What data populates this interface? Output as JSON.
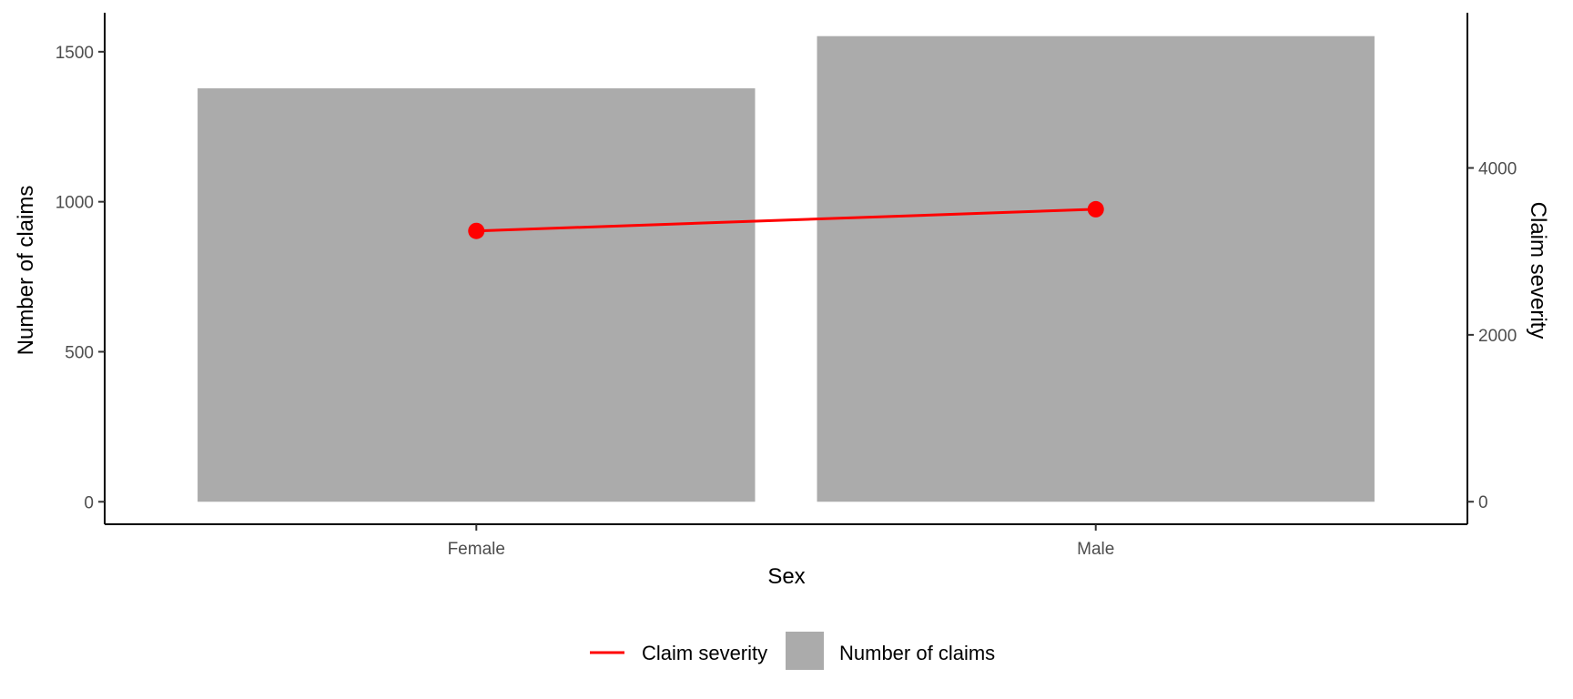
{
  "chart_data": {
    "type": "bar",
    "categories": [
      "Female",
      "Male"
    ],
    "xlabel": "Sex",
    "ylabel_left": "Number of claims",
    "ylabel_right": "Claim severity",
    "ylim_left": [
      -75,
      1630
    ],
    "ylim_right": [
      -270,
      5860
    ],
    "yticks_left": [
      0,
      500,
      1000,
      1500
    ],
    "yticks_right": [
      0,
      2000,
      4000
    ],
    "series": [
      {
        "name": "Number of claims",
        "type": "bar",
        "axis": "left",
        "color": "#ABABAB",
        "values": [
          1378,
          1552
        ]
      },
      {
        "name": "Claim severity",
        "type": "line",
        "axis": "right",
        "color": "#FF0000",
        "values": [
          3245,
          3505
        ]
      }
    ],
    "legend": {
      "position": "bottom",
      "items": [
        {
          "label": "Claim severity",
          "kind": "line",
          "color": "#FF0000"
        },
        {
          "label": "Number of claims",
          "kind": "box",
          "color": "#ABABAB"
        }
      ]
    },
    "grid": false
  }
}
